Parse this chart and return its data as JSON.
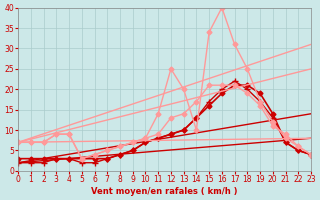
{
  "xlabel": "Vent moyen/en rafales ( km/h )",
  "background_color": "#cce8e8",
  "grid_color": "#aacccc",
  "xlim": [
    0,
    23
  ],
  "ylim": [
    0,
    40
  ],
  "yticks": [
    0,
    5,
    10,
    15,
    20,
    25,
    30,
    35,
    40
  ],
  "xticks": [
    0,
    1,
    2,
    3,
    4,
    5,
    6,
    7,
    8,
    9,
    10,
    11,
    12,
    13,
    14,
    15,
    16,
    17,
    18,
    19,
    20,
    21,
    22,
    23
  ],
  "series": [
    {
      "x": [
        0,
        1,
        2,
        3,
        4,
        5,
        6,
        7,
        8,
        9,
        10,
        11,
        12,
        13,
        14,
        15,
        16,
        17,
        18,
        19,
        20,
        21,
        22,
        23
      ],
      "y": [
        3,
        3,
        3,
        3,
        3,
        3,
        3,
        3,
        4,
        5,
        7,
        8,
        9,
        10,
        13,
        16,
        19,
        21,
        21,
        19,
        14,
        7,
        5,
        4
      ],
      "color": "#cc0000",
      "lw": 1.2,
      "marker": "D",
      "ms": 2.5
    },
    {
      "x": [
        0,
        1,
        2,
        3,
        4,
        5,
        6,
        7,
        8,
        9,
        10,
        11,
        12,
        13,
        14,
        15,
        16,
        17,
        18,
        19,
        20,
        21,
        22,
        23
      ],
      "y": [
        2,
        2,
        2,
        3,
        3,
        2,
        2,
        3,
        4,
        5,
        7,
        8,
        9,
        10,
        13,
        17,
        20,
        22,
        20,
        17,
        13,
        7,
        5,
        4
      ],
      "color": "#cc0000",
      "lw": 1.0,
      "marker": "+",
      "ms": 4
    },
    {
      "x": [
        0,
        23
      ],
      "y": [
        2,
        8
      ],
      "color": "#cc0000",
      "lw": 1.0,
      "marker": null,
      "ms": 0
    },
    {
      "x": [
        0,
        23
      ],
      "y": [
        2,
        14
      ],
      "color": "#cc0000",
      "lw": 1.0,
      "marker": null,
      "ms": 0
    },
    {
      "x": [
        0,
        1,
        2,
        3,
        4,
        5,
        6,
        7,
        8,
        9,
        10,
        11,
        12,
        13,
        14,
        15,
        16,
        17,
        18,
        19,
        20,
        21,
        22,
        23
      ],
      "y": [
        7,
        7,
        7,
        9,
        9,
        3,
        4,
        5,
        6,
        7,
        8,
        14,
        25,
        20,
        10,
        34,
        40,
        31,
        25,
        17,
        12,
        8,
        6,
        4
      ],
      "color": "#ff9999",
      "lw": 1.0,
      "marker": "D",
      "ms": 2.5
    },
    {
      "x": [
        0,
        1,
        2,
        3,
        4,
        5,
        6,
        7,
        8,
        9,
        10,
        11,
        12,
        13,
        14,
        15,
        16,
        17,
        18,
        19,
        20,
        21,
        22,
        23
      ],
      "y": [
        7,
        7,
        7,
        9,
        9,
        3,
        4,
        5,
        6,
        7,
        8,
        9,
        13,
        14,
        17,
        21,
        21,
        21,
        19,
        16,
        11,
        9,
        6,
        4
      ],
      "color": "#ff9999",
      "lw": 1.0,
      "marker": "D",
      "ms": 2.5
    },
    {
      "x": [
        0,
        23
      ],
      "y": [
        7,
        31
      ],
      "color": "#ff9999",
      "lw": 1.0,
      "marker": null,
      "ms": 0
    },
    {
      "x": [
        0,
        23
      ],
      "y": [
        7,
        25
      ],
      "color": "#ff9999",
      "lw": 1.0,
      "marker": null,
      "ms": 0
    },
    {
      "x": [
        0,
        23
      ],
      "y": [
        7,
        8
      ],
      "color": "#ff9999",
      "lw": 1.0,
      "marker": null,
      "ms": 0
    }
  ]
}
